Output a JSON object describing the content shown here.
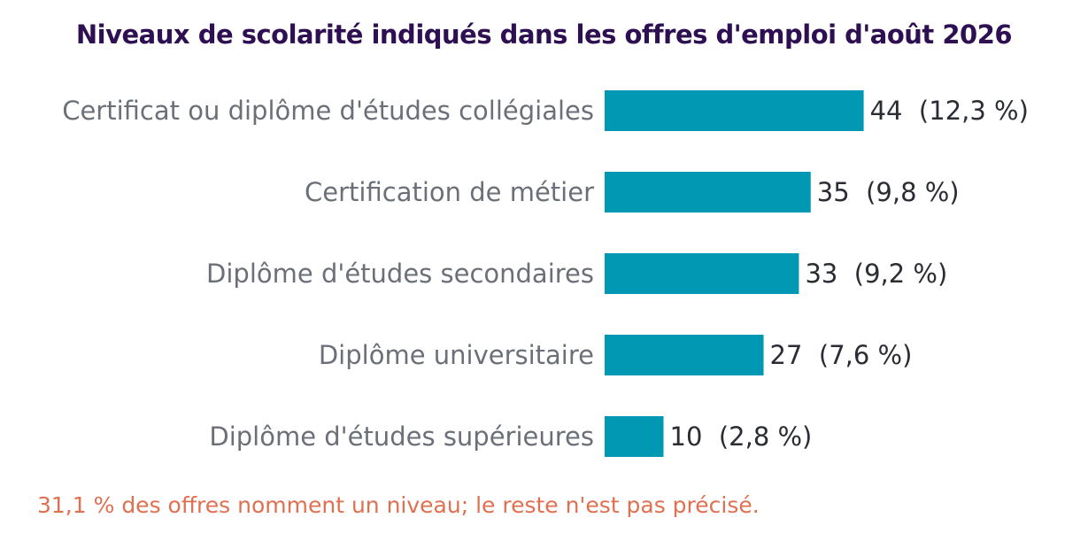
{
  "chart_data": {
    "type": "bar",
    "orientation": "horizontal",
    "title": "Niveaux de scolarité indiqués dans les offres d'emploi d'août 2026",
    "categories": [
      "Certificat ou diplôme d'études collégiales",
      "Certification de métier",
      "Diplôme d'études secondaires",
      "Diplôme universitaire",
      "Diplôme d'études supérieures"
    ],
    "values": [
      44,
      35,
      33,
      27,
      10
    ],
    "data_labels": [
      "44  (12,3 %)",
      "35  (9,8 %)",
      "33  (9,2 %)",
      "27  (7,6 %)",
      "10  (2,8 %)"
    ],
    "xlabel": "",
    "ylabel": "",
    "grid": false,
    "legend": "none",
    "bar_color": "#0098b3"
  },
  "footnote": "31,1 % des offres nomment un niveau; le reste n'est pas précisé.",
  "colors": {
    "title": "#2d0f52",
    "category_label": "#6b7078",
    "value_label": "#2a2d33",
    "footnote": "#e0704f"
  }
}
